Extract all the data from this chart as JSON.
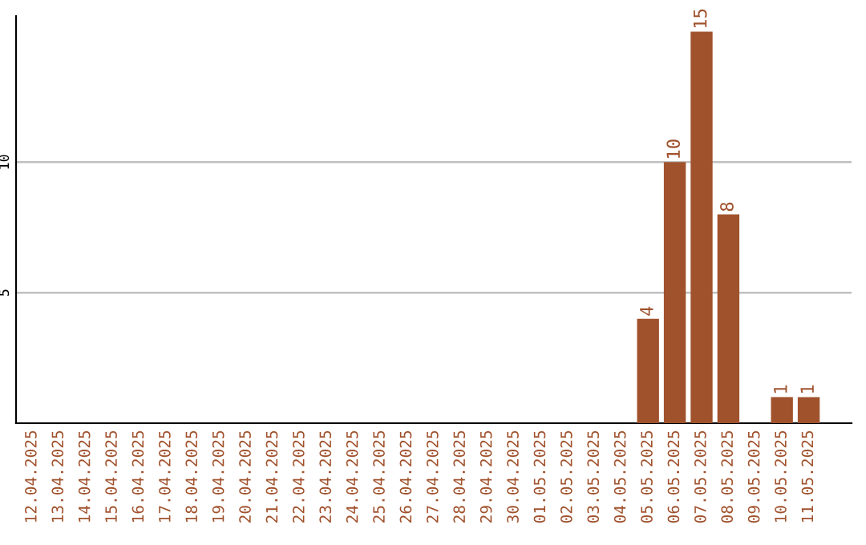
{
  "chart_data": {
    "type": "bar",
    "categories": [
      "12.04.2025",
      "13.04.2025",
      "14.04.2025",
      "15.04.2025",
      "16.04.2025",
      "17.04.2025",
      "18.04.2025",
      "19.04.2025",
      "20.04.2025",
      "21.04.2025",
      "22.04.2025",
      "23.04.2025",
      "24.04.2025",
      "25.04.2025",
      "26.04.2025",
      "27.04.2025",
      "28.04.2025",
      "29.04.2025",
      "30.04.2025",
      "01.05.2025",
      "02.05.2025",
      "03.05.2025",
      "04.05.2025",
      "05.05.2025",
      "06.05.2025",
      "07.05.2025",
      "08.05.2025",
      "09.05.2025",
      "10.05.2025",
      "11.05.2025"
    ],
    "values": [
      0,
      0,
      0,
      0,
      0,
      0,
      0,
      0,
      0,
      0,
      0,
      0,
      0,
      0,
      0,
      0,
      0,
      0,
      0,
      0,
      0,
      0,
      0,
      4,
      10,
      15,
      8,
      0,
      1,
      1
    ],
    "value_labels": [
      null,
      null,
      null,
      null,
      null,
      null,
      null,
      null,
      null,
      null,
      null,
      null,
      null,
      null,
      null,
      null,
      null,
      null,
      null,
      null,
      null,
      null,
      null,
      "4",
      "10",
      "15",
      "8",
      null,
      "1",
      "1"
    ],
    "color": "#a0522d",
    "ylim": [
      0,
      15.6
    ],
    "yticks": [
      5,
      10
    ],
    "grid": "y"
  }
}
